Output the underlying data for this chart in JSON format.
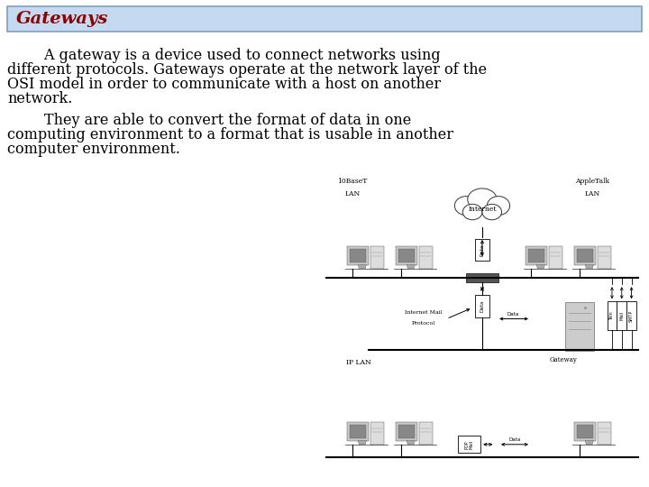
{
  "title": "Gateways",
  "title_color": "#8B0000",
  "title_bg_color": "#c5d9f1",
  "title_border_color": "#7f9fbf",
  "bg_color": "#ffffff",
  "para1_line1": "        A gateway is a device used to connect networks using",
  "para1_line2": "different protocols. Gateways operate at the network layer of the",
  "para1_line3": "OSI model in order to communicate with a host on another",
  "para1_line4": "network.",
  "para2_line1": "        They are able to convert the format of data in one",
  "para2_line2": "computing environment to a format that is usable in another",
  "para2_line3": "computer environment.",
  "text_color": "#000000",
  "font_size_title": 14,
  "font_size_body": 11.5
}
